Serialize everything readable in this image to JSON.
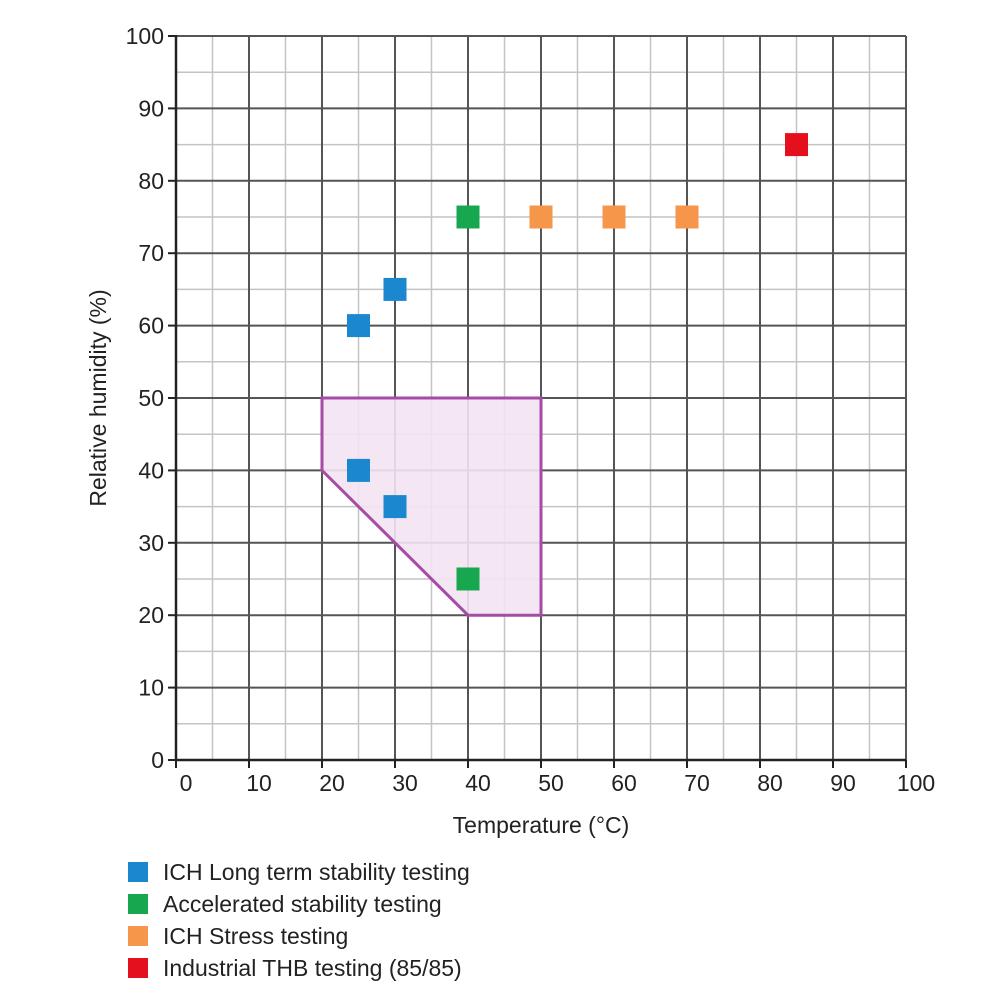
{
  "chart_data": {
    "type": "scatter",
    "title": "",
    "xlabel": "Temperature (°C)",
    "ylabel": "Relative humidity (%)",
    "xlim": [
      0,
      100
    ],
    "ylim": [
      0,
      100
    ],
    "x_ticks": [
      0,
      10,
      20,
      30,
      40,
      50,
      60,
      70,
      80,
      90,
      100
    ],
    "y_ticks": [
      0,
      10,
      20,
      30,
      40,
      50,
      60,
      70,
      80,
      90,
      100
    ],
    "grid": true,
    "grid_minor_step": 5,
    "legend_position": "bottom-left",
    "series": [
      {
        "name": "ICH Long term stability testing",
        "color": "#1a87cf",
        "points": [
          [
            25,
            60
          ],
          [
            30,
            65
          ],
          [
            25,
            40
          ],
          [
            30,
            35
          ]
        ]
      },
      {
        "name": "Accelerated stability testing",
        "color": "#17a84f",
        "points": [
          [
            40,
            75
          ],
          [
            40,
            25
          ]
        ]
      },
      {
        "name": "ICH Stress testing",
        "color": "#f6964a",
        "points": [
          [
            50,
            75
          ],
          [
            60,
            75
          ],
          [
            70,
            75
          ]
        ]
      },
      {
        "name": "Industrial THB testing (85/85)",
        "color": "#e4101d",
        "points": [
          [
            85,
            85
          ]
        ]
      }
    ],
    "region": {
      "stroke": "#a64ba6",
      "fill": "#f3e3f1",
      "vertices": [
        [
          20,
          50
        ],
        [
          50,
          50
        ],
        [
          50,
          20
        ],
        [
          40,
          20
        ],
        [
          20,
          40
        ]
      ]
    }
  }
}
